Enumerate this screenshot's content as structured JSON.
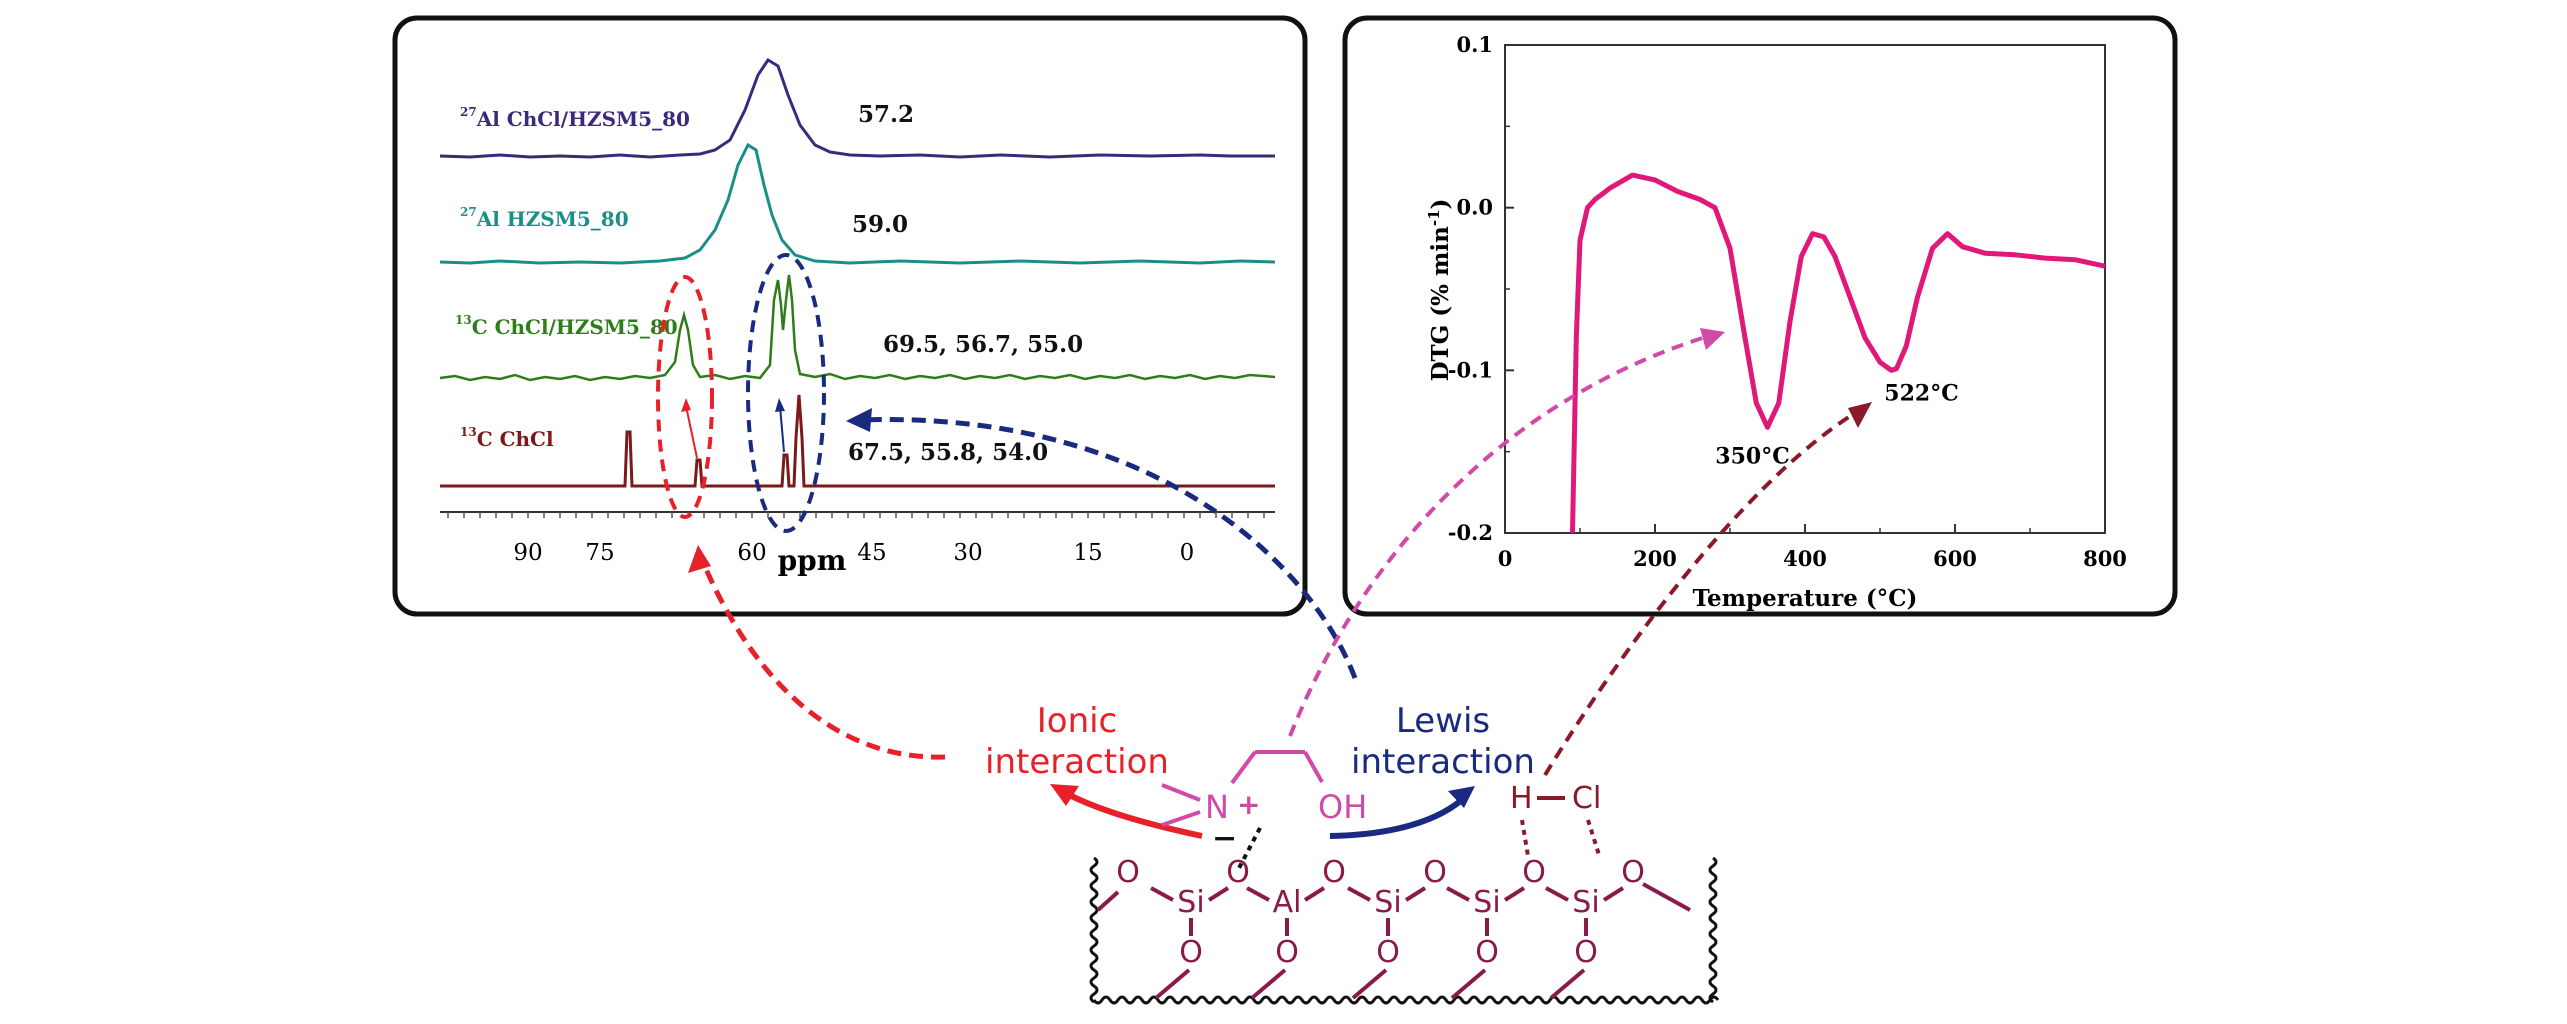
{
  "nmr_panel": {
    "spectra": [
      {
        "nucleus": "27",
        "element": "Al",
        "label": "ChCl/HZSM5_80",
        "peaks_text": "57.2",
        "color": "#3b2a7a"
      },
      {
        "nucleus": "27",
        "element": "Al",
        "label": "HZSM5_80",
        "peaks_text": "59.0",
        "color": "#1a8f8a"
      },
      {
        "nucleus": "13",
        "element": "C",
        "label": "ChCl/HZSM5_80",
        "peaks_text": "69.5, 56.7, 55.0",
        "color": "#2e7d1a"
      },
      {
        "nucleus": "13",
        "element": "C",
        "label": "ChCl",
        "peaks_text": "67.5, 55.8, 54.0",
        "color": "#7a1a1a"
      }
    ],
    "xaxis_label": "ppm",
    "xticks": [
      "90",
      "75",
      "60",
      "45",
      "30",
      "15",
      "0"
    ]
  },
  "chart_data": {
    "type": "line",
    "title": "",
    "xlabel": "Temperature (°C)",
    "ylabel_main": "DTG (% min",
    "ylabel_sup": "-1",
    "ylabel_close": ")",
    "xlim": [
      0,
      800
    ],
    "ylim": [
      -0.2,
      0.1
    ],
    "xticks": [
      0,
      200,
      400,
      600,
      800
    ],
    "yticks": [
      -0.2,
      -0.1,
      0.0,
      0.1
    ],
    "ytick_labels": [
      "-0.2",
      "-0.1",
      "0.0",
      "0.1"
    ],
    "series": [
      {
        "name": "DTG",
        "color": "#e0187a",
        "x": [
          90,
          95,
          100,
          110,
          120,
          140,
          170,
          200,
          230,
          260,
          280,
          300,
          320,
          335,
          350,
          365,
          380,
          395,
          410,
          425,
          440,
          460,
          480,
          500,
          515,
          522,
          535,
          550,
          570,
          590,
          610,
          640,
          680,
          720,
          760,
          800
        ],
        "y": [
          -0.2,
          -0.08,
          -0.02,
          0.0,
          0.005,
          0.012,
          0.02,
          0.017,
          0.01,
          0.005,
          0.0,
          -0.025,
          -0.08,
          -0.12,
          -0.135,
          -0.12,
          -0.07,
          -0.03,
          -0.016,
          -0.018,
          -0.03,
          -0.055,
          -0.08,
          -0.095,
          -0.1,
          -0.099,
          -0.085,
          -0.055,
          -0.025,
          -0.016,
          -0.024,
          -0.028,
          -0.029,
          -0.031,
          -0.032,
          -0.036
        ]
      }
    ],
    "annotations": [
      {
        "text": "350°C",
        "x": 350,
        "y": -0.135
      },
      {
        "text": "522°C",
        "x": 522,
        "y": -0.1
      }
    ]
  },
  "scheme": {
    "ionic_line1": "Ionic",
    "ionic_line2": "interaction",
    "lewis_line1": "Lewis",
    "lewis_line2": "interaction",
    "n_atom": "N",
    "plus": "+",
    "minus": "−",
    "oh": "OH",
    "h_atom": "H",
    "cl_atom": "Cl",
    "o": "O",
    "si": "Si",
    "al": "Al"
  },
  "colors": {
    "red": "#e8202a",
    "navy": "#1a2a80",
    "pink": "#d04aa8",
    "darkred": "#8a1a2a",
    "framework": "#8a1a4a"
  }
}
